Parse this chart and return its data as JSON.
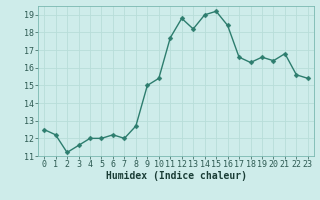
{
  "x": [
    0,
    1,
    2,
    3,
    4,
    5,
    6,
    7,
    8,
    9,
    10,
    11,
    12,
    13,
    14,
    15,
    16,
    17,
    18,
    19,
    20,
    21,
    22,
    23
  ],
  "y": [
    12.5,
    12.2,
    11.2,
    11.6,
    12.0,
    12.0,
    12.2,
    12.0,
    12.7,
    15.0,
    15.4,
    17.7,
    18.8,
    18.2,
    19.0,
    19.2,
    18.4,
    16.6,
    16.3,
    16.6,
    16.4,
    16.8,
    15.6,
    15.4
  ],
  "line_color": "#2d7d6e",
  "bg_color": "#ceecea",
  "grid_color": "#b8ddd9",
  "xlabel": "Humidex (Indice chaleur)",
  "ylim": [
    11,
    19.5
  ],
  "xlim": [
    -0.5,
    23.5
  ],
  "yticks": [
    11,
    12,
    13,
    14,
    15,
    16,
    17,
    18,
    19
  ],
  "xticks": [
    0,
    1,
    2,
    3,
    4,
    5,
    6,
    7,
    8,
    9,
    10,
    11,
    12,
    13,
    14,
    15,
    16,
    17,
    18,
    19,
    20,
    21,
    22,
    23
  ],
  "marker_size": 2.5,
  "line_width": 1.0,
  "title_fontsize": 7,
  "tick_fontsize": 6,
  "xlabel_fontsize": 7
}
